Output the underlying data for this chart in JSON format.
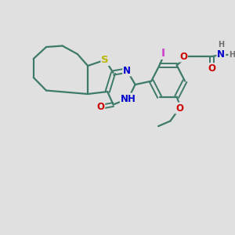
{
  "bg_color": "#e0e0e0",
  "bond_color": "#3d7a6a",
  "S_color": "#b8b800",
  "N_color": "#0000cc",
  "O_color": "#cc0000",
  "I_color": "#cc44cc",
  "H_color": "#707070",
  "bond_lw": 1.6,
  "font_size": 8.5,
  "figsize": [
    3.0,
    3.0
  ],
  "dpi": 100,
  "xlim": [
    0,
    10
  ],
  "ylim": [
    0,
    10
  ]
}
